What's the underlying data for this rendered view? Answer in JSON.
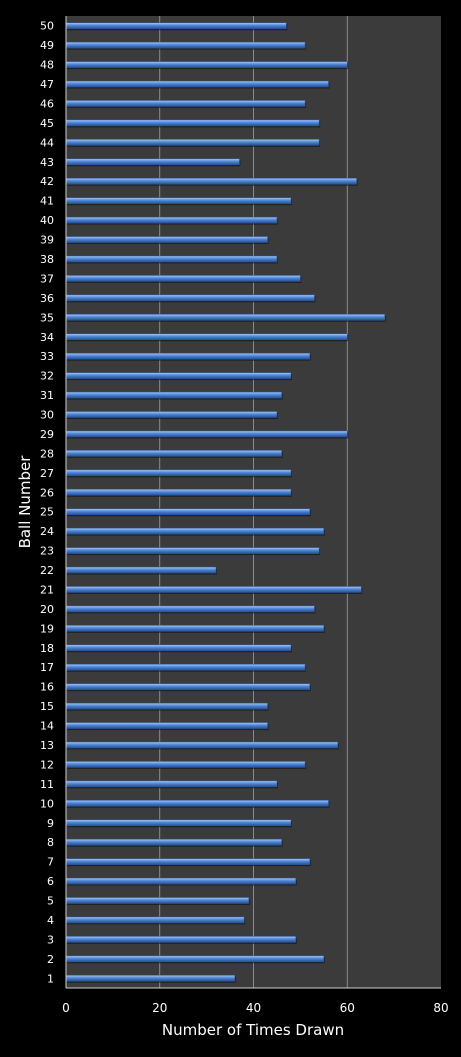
{
  "chart_data": {
    "type": "bar",
    "orientation": "horizontal",
    "title": "",
    "xlabel": "Number of Times Drawn",
    "ylabel": "Ball Number",
    "xlim": [
      0,
      80
    ],
    "xticks": [
      "0",
      "20",
      "40",
      "60",
      "80"
    ],
    "grid": true,
    "legend": "none",
    "colors": {
      "background": "#000000",
      "plot_area": "#3b3b3b",
      "bar": "#4f86d8",
      "bar_highlight": "#a9c9f7",
      "bar_shadow": "#24508f",
      "grid": "#a0a0a0",
      "text": "#ffffff"
    },
    "categories": [
      "1",
      "2",
      "3",
      "4",
      "5",
      "6",
      "7",
      "8",
      "9",
      "10",
      "11",
      "12",
      "13",
      "14",
      "15",
      "16",
      "17",
      "18",
      "19",
      "20",
      "21",
      "22",
      "23",
      "24",
      "25",
      "26",
      "27",
      "28",
      "29",
      "30",
      "31",
      "32",
      "33",
      "34",
      "35",
      "36",
      "37",
      "38",
      "39",
      "40",
      "41",
      "42",
      "43",
      "44",
      "45",
      "46",
      "47",
      "48",
      "49",
      "50"
    ],
    "values": [
      36,
      55,
      49,
      38,
      39,
      49,
      52,
      46,
      48,
      56,
      45,
      51,
      58,
      43,
      43,
      52,
      51,
      48,
      55,
      53,
      63,
      32,
      54,
      55,
      52,
      48,
      48,
      46,
      60,
      45,
      46,
      48,
      52,
      60,
      68,
      53,
      50,
      45,
      43,
      45,
      48,
      62,
      37,
      54,
      54,
      51,
      56,
      60,
      51,
      47
    ]
  }
}
